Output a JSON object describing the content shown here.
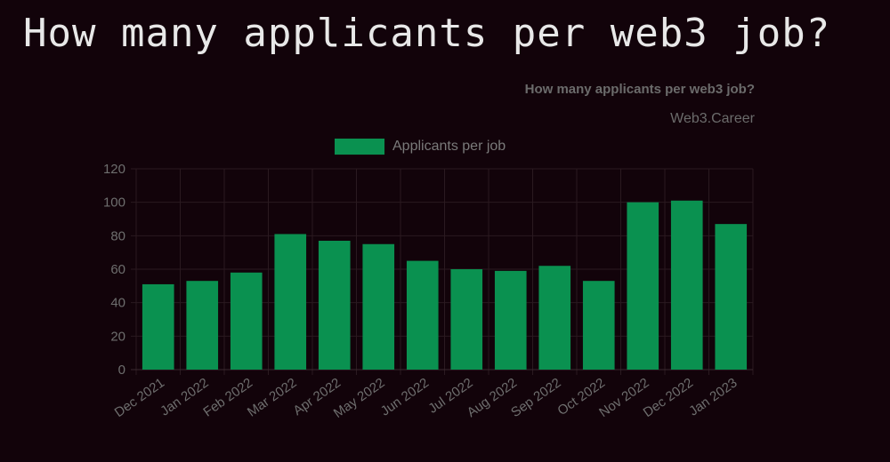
{
  "page": {
    "heading": "How many applicants per web3 job?"
  },
  "colors": {
    "background": "#12030a",
    "bar": "#0a9150",
    "text": "#6e6e6e"
  },
  "chart_data": {
    "type": "bar",
    "title": "How many applicants per web3 job?",
    "subtitle": "Web3.Career",
    "legend_position": "top",
    "grid": true,
    "categories": [
      "Dec 2021",
      "Jan 2022",
      "Feb 2022",
      "Mar 2022",
      "Apr 2022",
      "May 2022",
      "Jun 2022",
      "Jul 2022",
      "Aug 2022",
      "Sep 2022",
      "Oct 2022",
      "Nov 2022",
      "Dec 2022",
      "Jan 2023"
    ],
    "series": [
      {
        "name": "Applicants per job",
        "values": [
          51,
          53,
          58,
          81,
          77,
          75,
          65,
          60,
          59,
          62,
          53,
          100,
          101,
          87
        ]
      }
    ],
    "ylim": [
      0,
      120
    ],
    "yticks": [
      0,
      20,
      40,
      60,
      80,
      100,
      120
    ]
  }
}
